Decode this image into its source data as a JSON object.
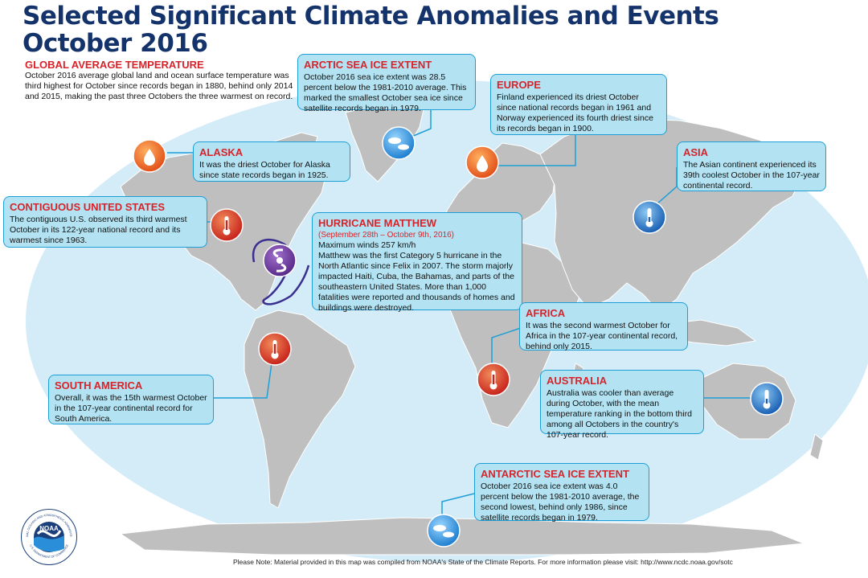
{
  "title_line1": "Selected Significant Climate Anomalies and Events",
  "title_line2": "October 2016",
  "global": {
    "heading": "GLOBAL AVERAGE TEMPERATURE",
    "text": "October 2016 average global land and ocean surface temperature was third highest for October since records began in 1880, behind only 2014 and 2015, making the past three Octobers the three warmest on record."
  },
  "events": {
    "arctic": {
      "heading": "ARCTIC SEA ICE EXTENT",
      "text": "October 2016 sea ice extent was 28.5 percent below the 1981-2010 average. This marked the smallest October sea ice since satellite records began in 1979."
    },
    "europe": {
      "heading": "EUROPE",
      "text": "Finland experienced its driest October since national records began in 1961 and Norway experienced its fourth driest since its records began in 1900."
    },
    "alaska": {
      "heading": "ALASKA",
      "text": "It was the driest October for Alaska since state records began in 1925."
    },
    "asia": {
      "heading": "ASIA",
      "text": "The Asian continent experienced its 39th coolest October in the 107-year continental record."
    },
    "conus": {
      "heading": "CONTIGUOUS UNITED STATES",
      "text": "The contiguous U.S. observed its third warmest October in its 122-year national record and its warmest since 1963."
    },
    "matthew": {
      "heading": "HURRICANE MATTHEW",
      "dates": "(September 28th – October 9th, 2016)",
      "winds": "Maximum winds 257 km/h",
      "text": "Matthew was the first Category 5 hurricane in the North Atlantic since Felix in 2007. The storm majorly impacted Haiti, Cuba, the Bahamas, and parts of the southeastern United States. More than 1,000 fatalities were reported and thousands of homes and buildings were destroyed."
    },
    "africa": {
      "heading": "AFRICA",
      "text": "It was the second warmest October for Africa in the 107-year continental record, behind only 2015."
    },
    "south_america": {
      "heading": "SOUTH AMERICA",
      "text": "Overall, it was the 15th warmest October in the 107-year continental record for South America."
    },
    "australia": {
      "heading": "AUSTRALIA",
      "text": "Australia was cooler than average during October, with the mean temperature ranking in the bottom third among all Octobers in the country's 107-year record."
    },
    "antarctic": {
      "heading": "ANTARCTIC SEA ICE EXTENT",
      "text": "October 2016 sea ice extent was 4.0 percent below the 1981-2010 average, the second lowest, behind only 1986, since satellite records began in 1979."
    }
  },
  "footnote": "Please Note: Material provided in this map was compiled from NOAA's State of the Climate Reports. For more information please visit: http://www.ncdc.noaa.gov/sotc",
  "logo": {
    "wordmark": "NOAA",
    "ring_top": "NATIONAL OCEANIC AND ATMOSPHERIC ADMINISTRATION",
    "ring_bottom": "U.S. DEPARTMENT OF COMMERCE"
  },
  "colors": {
    "ocean": "#d4ecf8",
    "land": "#bfbfbf",
    "box_fill": "#b3e3f2",
    "box_border": "#1d9fd6",
    "heading_red": "#d8232a",
    "title_navy": "#15336b",
    "warm_icon": "#d93a26",
    "dry_icon": "#f06a1f",
    "cool_icon": "#1f78c8",
    "ice_icon": "#2a8fd8",
    "hurricane": "#6a3399"
  },
  "icons": {
    "warm": "thermometer-hot-icon",
    "cool": "thermometer-cold-icon",
    "dry": "drought-drop-icon",
    "ice": "sea-ice-icon",
    "hurricane": "hurricane-icon"
  }
}
